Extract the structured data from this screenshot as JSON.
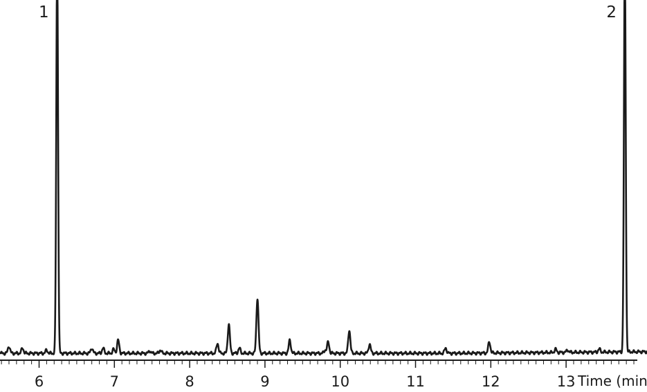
{
  "chart_data": {
    "type": "line",
    "xlabel": "Time (min)",
    "ylabel": "",
    "xlim": [
      5.5,
      14.1
    ],
    "ylim": [
      0,
      1.0
    ],
    "x_ticks": [
      6,
      7,
      8,
      9,
      10,
      11,
      12,
      13
    ],
    "tick_labels": [
      "6",
      "7",
      "8",
      "9",
      "10",
      "11",
      "12",
      "13"
    ],
    "baseline": 0.012,
    "peaks": [
      {
        "time": 5.6,
        "height": 0.03
      },
      {
        "time": 5.78,
        "height": 0.025
      },
      {
        "time": 6.1,
        "height": 0.02
      },
      {
        "time": 6.24,
        "height": 1.0,
        "label": "1"
      },
      {
        "time": 6.7,
        "height": 0.025
      },
      {
        "time": 6.85,
        "height": 0.025
      },
      {
        "time": 6.99,
        "height": 0.022
      },
      {
        "time": 7.05,
        "height": 0.045
      },
      {
        "time": 7.47,
        "height": 0.018
      },
      {
        "time": 7.61,
        "height": 0.02
      },
      {
        "time": 8.02,
        "height": 0.012
      },
      {
        "time": 8.25,
        "height": 0.012
      },
      {
        "time": 8.37,
        "height": 0.037
      },
      {
        "time": 8.52,
        "height": 0.085
      },
      {
        "time": 8.66,
        "height": 0.025
      },
      {
        "time": 8.9,
        "height": 0.15
      },
      {
        "time": 9.33,
        "height": 0.045
      },
      {
        "time": 9.8,
        "height": 0.02
      },
      {
        "time": 9.84,
        "height": 0.04
      },
      {
        "time": 10.12,
        "height": 0.07
      },
      {
        "time": 10.39,
        "height": 0.035
      },
      {
        "time": 11.4,
        "height": 0.025
      },
      {
        "time": 11.98,
        "height": 0.04
      },
      {
        "time": 12.86,
        "height": 0.02
      },
      {
        "time": 13.02,
        "height": 0.018
      },
      {
        "time": 13.44,
        "height": 0.02
      },
      {
        "time": 13.78,
        "height": 1.0,
        "label": "2"
      }
    ]
  }
}
